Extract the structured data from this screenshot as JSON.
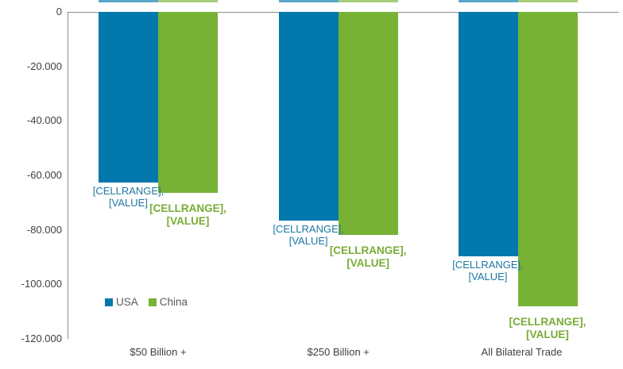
{
  "chart_data": {
    "type": "bar",
    "title": "",
    "xlabel": "",
    "ylabel": "",
    "categories": [
      "$50 Billion +",
      "$250 Billion +",
      "All Bilateral Trade"
    ],
    "series": [
      {
        "name": "USA",
        "color": "#0378ac",
        "values": [
          -62600,
          -76500,
          -89700
        ]
      },
      {
        "name": "China",
        "color": "#77b235",
        "values": [
          -66400,
          -81700,
          -108000
        ]
      }
    ],
    "point_label_lines": [
      "[CELLRANGE],",
      "[VALUE]"
    ],
    "ylim": [
      -120000,
      0
    ],
    "y_ticks": [
      "0",
      "-20.000",
      "-40.000",
      "-60.000",
      "-80.000",
      "-100.000",
      "-120.000"
    ],
    "grid": false,
    "legend_position": "inside-bottom-left"
  },
  "legend": {
    "items": [
      {
        "label": "USA",
        "color": "#0378ac"
      },
      {
        "label": "China",
        "color": "#77b235"
      }
    ]
  },
  "colors": {
    "axis": "#8c8c8c",
    "tick_text": "#3f3f3f",
    "legend_text": "#595959",
    "background": "#ffffff"
  }
}
